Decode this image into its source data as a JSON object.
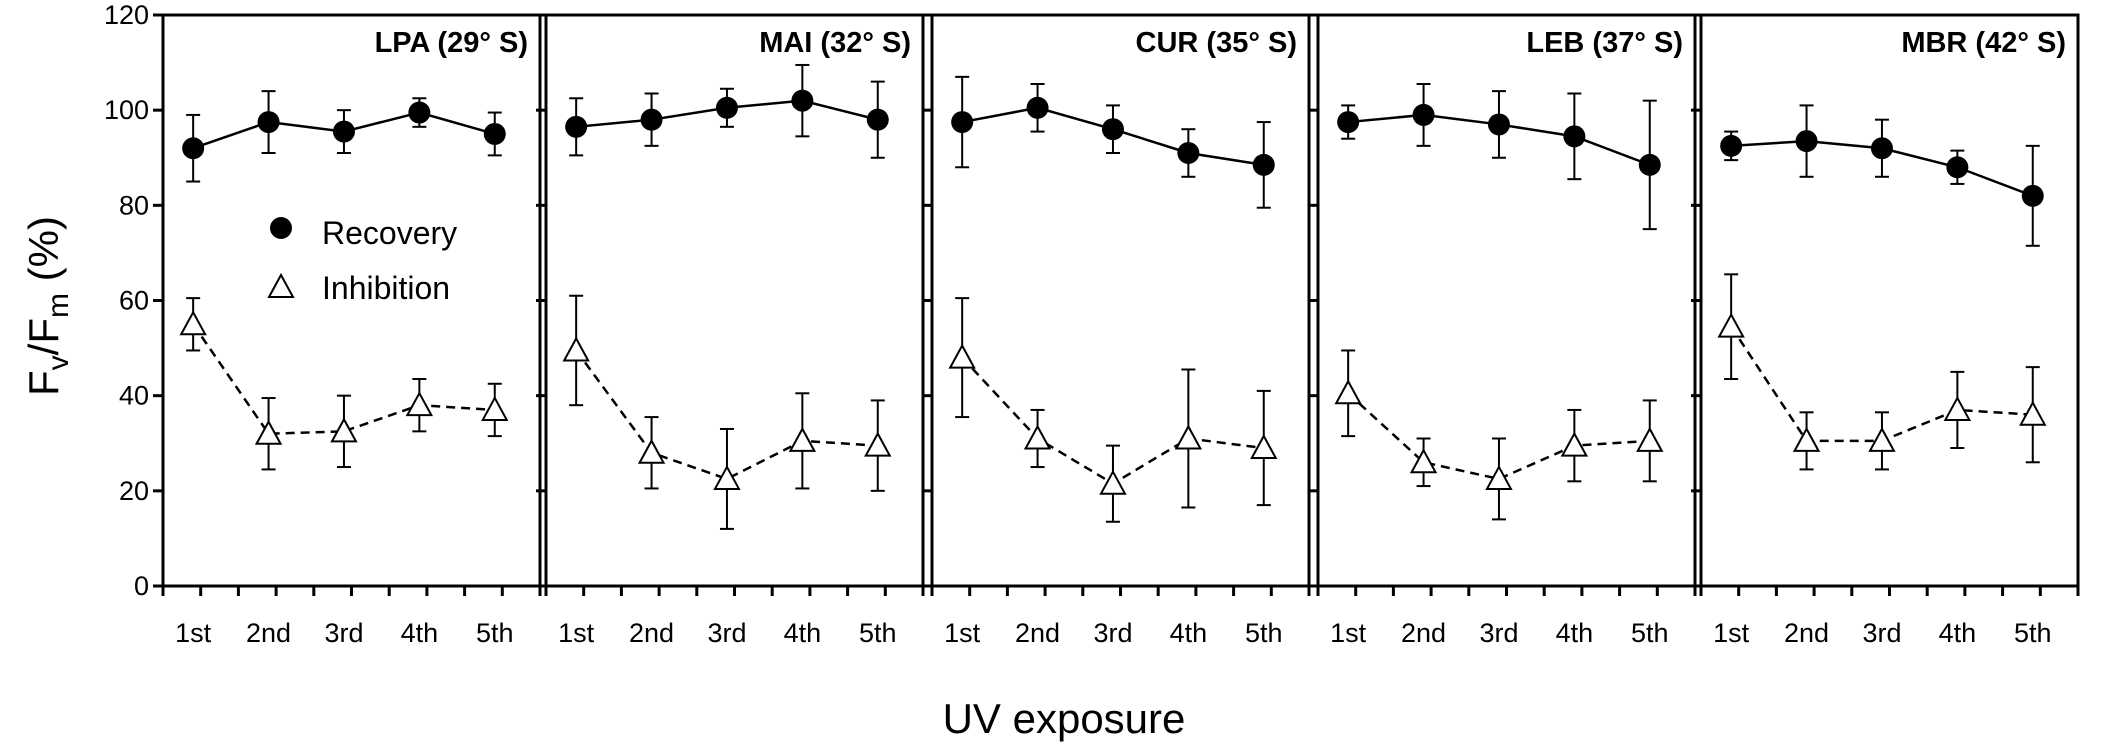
{
  "chart_data": {
    "type": "line",
    "ylabel": {
      "main": "F",
      "sub1": "v",
      "mid": "/F",
      "sub2": "m",
      "unit": " (%)"
    },
    "xlabel": "UV exposure",
    "ylim": [
      0,
      120
    ],
    "yticks": [
      "0",
      "20",
      "40",
      "60",
      "80",
      "100",
      "120"
    ],
    "categories": [
      "1st",
      "2nd",
      "3rd",
      "4th",
      "5th"
    ],
    "legend": {
      "placement": "inside first panel, left",
      "items": [
        "Recovery",
        "Inhibition"
      ]
    },
    "panels": [
      {
        "title": "LPA (29° S)",
        "series": [
          {
            "name": "Recovery",
            "marker": "filled-circle",
            "line": "solid",
            "values": [
              92,
              97.5,
              95.5,
              99.5,
              95
            ],
            "errors": [
              7,
              6.5,
              4.5,
              3,
              4.5
            ]
          },
          {
            "name": "Inhibition",
            "marker": "open-triangle",
            "line": "dashed",
            "values": [
              55,
              32,
              32.5,
              38,
              37
            ],
            "errors": [
              5.5,
              7.5,
              7.5,
              5.5,
              5.5
            ]
          }
        ]
      },
      {
        "title": "MAI (32° S)",
        "series": [
          {
            "name": "Recovery",
            "marker": "filled-circle",
            "line": "solid",
            "values": [
              96.5,
              98,
              100.5,
              102,
              98
            ],
            "errors": [
              6,
              5.5,
              4,
              7.5,
              8
            ]
          },
          {
            "name": "Inhibition",
            "marker": "open-triangle",
            "line": "dashed",
            "values": [
              49.5,
              28,
              22.5,
              30.5,
              29.5
            ],
            "errors": [
              11.5,
              7.5,
              10.5,
              10,
              9.5
            ]
          }
        ]
      },
      {
        "title": "CUR (35° S)",
        "series": [
          {
            "name": "Recovery",
            "marker": "filled-circle",
            "line": "solid",
            "values": [
              97.5,
              100.5,
              96,
              91,
              88.5
            ],
            "errors": [
              9.5,
              5,
              5,
              5,
              9
            ]
          },
          {
            "name": "Inhibition",
            "marker": "open-triangle",
            "line": "dashed",
            "values": [
              48,
              31,
              21.5,
              31,
              29
            ],
            "errors": [
              12.5,
              6,
              8,
              14.5,
              12
            ]
          }
        ]
      },
      {
        "title": "LEB (37° S)",
        "series": [
          {
            "name": "Recovery",
            "marker": "filled-circle",
            "line": "solid",
            "values": [
              97.5,
              99,
              97,
              94.5,
              88.5
            ],
            "errors": [
              3.5,
              6.5,
              7,
              9,
              13.5
            ]
          },
          {
            "name": "Inhibition",
            "marker": "open-triangle",
            "line": "dashed",
            "values": [
              40.5,
              26,
              22.5,
              29.5,
              30.5
            ],
            "errors": [
              9,
              5,
              8.5,
              7.5,
              8.5
            ]
          }
        ]
      },
      {
        "title": "MBR (42° S)",
        "series": [
          {
            "name": "Recovery",
            "marker": "filled-circle",
            "line": "solid",
            "values": [
              92.5,
              93.5,
              92,
              88,
              82
            ],
            "errors": [
              3,
              7.5,
              6,
              3.5,
              10.5
            ]
          },
          {
            "name": "Inhibition",
            "marker": "open-triangle",
            "line": "dashed",
            "values": [
              54.5,
              30.5,
              30.5,
              37,
              36
            ],
            "errors": [
              11,
              6,
              6,
              8,
              10
            ]
          }
        ]
      }
    ]
  }
}
